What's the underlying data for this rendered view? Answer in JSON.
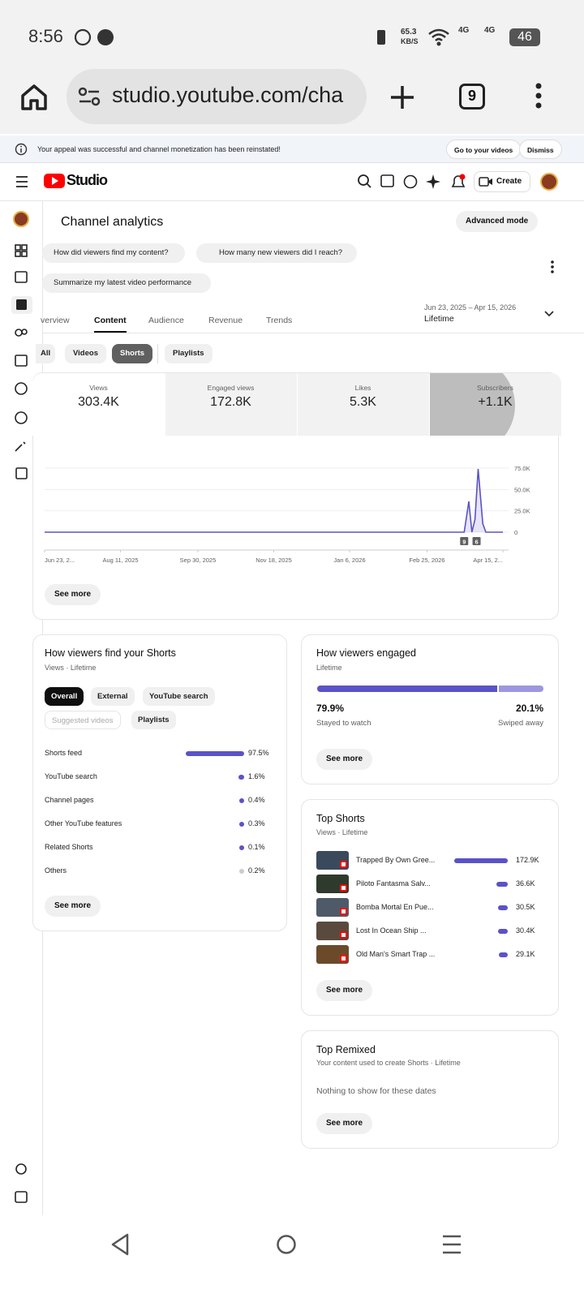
{
  "status_bar": {
    "time": "8:56",
    "speed": "65.3",
    "speed_unit": "KB/S",
    "network_1": "4G",
    "network_2": "4G",
    "battery": "46"
  },
  "browser": {
    "url": "studio.youtube.com/cha",
    "tab_count": "9"
  },
  "banner": {
    "message": "Your appeal was successful and channel monetization has been reinstated!",
    "actions": [
      "Go to your videos",
      "Dismiss"
    ]
  },
  "header": {
    "logo": "Studio",
    "create": "Create"
  },
  "page": {
    "title": "Channel analytics",
    "advanced_mode": "Advanced mode",
    "prompts": [
      "How did viewers find my content?",
      "How many new viewers did I reach?",
      "Summarize my latest video performance"
    ],
    "tabs": [
      "verview",
      "Content",
      "Audience",
      "Revenue",
      "Trends"
    ],
    "active_tab": 1,
    "date_range": "Jun 23, 2025 – Apr 15, 2026",
    "period": "Lifetime",
    "filters": [
      "All",
      "Videos",
      "Shorts",
      "Playlists"
    ],
    "active_filter": 2
  },
  "metrics": [
    {
      "label": "Views",
      "value": "303.4K"
    },
    {
      "label": "Engaged views",
      "value": "172.8K"
    },
    {
      "label": "Likes",
      "value": "5.3K"
    },
    {
      "label": "Subscribers",
      "value": "+1.1K"
    }
  ],
  "views_chart": {
    "type": "line",
    "x": [
      "Jun 23, 2025",
      "Mar 21, 2026",
      "Mar 24, 2026",
      "Mar 26, 2026",
      "Mar 28, 2026",
      "Mar 30, 2026",
      "Apr 2, 2026",
      "Apr 4, 2026",
      "Apr 15, 2026"
    ],
    "series": [
      {
        "color": "#5b52c8",
        "values": [
          0,
          0,
          36000,
          0,
          15000,
          74000,
          10000,
          0,
          0
        ]
      }
    ],
    "xlim": [
      "Jun 23, 2025",
      "Apr 15, 2026"
    ],
    "xticks": [
      {
        "value": "Jun 23, 2025",
        "label": "Jun 23, 2..."
      },
      "Aug 11, 2025",
      "Sep 30, 2025",
      "Nov 18, 2025",
      "Jan 6, 2026",
      "Feb 25, 2026",
      {
        "value": "Apr 15, 2026",
        "label": "Apr 15, 2..."
      }
    ],
    "ylim": [
      0,
      75000
    ],
    "yticks": [
      0,
      {
        "value": 25000,
        "label": "25.0K"
      },
      {
        "value": 50000,
        "label": "50.0K"
      },
      {
        "value": 75000,
        "label": "75.0K"
      }
    ],
    "annotations": [
      {
        "x": "Mar 21, 2026",
        "label": "9"
      },
      {
        "x": "Mar 29, 2026",
        "label": "6"
      }
    ],
    "see_more": "See more"
  },
  "viewer_sources": {
    "title": "How viewers find your Shorts",
    "subtitle": "Views · Lifetime",
    "chips": [
      "Overall",
      "External",
      "YouTube search",
      "Suggested videos",
      "Playlists"
    ],
    "rows": [
      {
        "name": "Shorts feed",
        "value": 97.5,
        "value_label": "97.5%",
        "color": "#5b52c8"
      },
      {
        "name": "YouTube search",
        "value": 1.6,
        "value_label": "1.6%",
        "color": "#5b52c8"
      },
      {
        "name": "Channel pages",
        "value": 0.4,
        "value_label": "0.4%",
        "color": "#5b52c8"
      },
      {
        "name": "Other YouTube features",
        "value": 0.3,
        "value_label": "0.3%",
        "color": "#5b52c8"
      },
      {
        "name": "Related Shorts",
        "value": 0.1,
        "value_label": "0.1%",
        "color": "#5b52c8"
      },
      {
        "name": "Others",
        "value": 0.2,
        "value_label": "0.2%",
        "color": "#cccccc"
      }
    ],
    "see_more": "See more"
  },
  "engagement": {
    "title": "How viewers engaged",
    "period": "Lifetime",
    "stayed": {
      "value": 79.9,
      "value_label": "79.9%",
      "label": "Stayed to watch",
      "color": "#5b52c8"
    },
    "swiped": {
      "value": 20.1,
      "value_label": "20.1%",
      "label": "Swiped away",
      "color": "#9d97e0"
    },
    "see_more": "See more"
  },
  "top_shorts": {
    "title": "Top Shorts",
    "subtitle": "Views · Lifetime",
    "rows": [
      {
        "title": "Trapped By Own Gree...",
        "value": 172900,
        "value_label": "172.9K"
      },
      {
        "title": "Piloto Fantasma Salv...",
        "value": 36600,
        "value_label": "36.6K"
      },
      {
        "title": "Bomba Mortal En Pue...",
        "value": 30500,
        "value_label": "30.5K"
      },
      {
        "title": "Lost In Ocean Ship ...",
        "value": 30400,
        "value_label": "30.4K"
      },
      {
        "title": "Old Man's Smart Trap ...",
        "value": 29100,
        "value_label": "29.1K"
      }
    ],
    "color": "#5b52c8",
    "see_more": "See more"
  },
  "top_remixed": {
    "title": "Top Remixed",
    "subtitle": "Your content used to create Shorts · Lifetime",
    "empty": "Nothing to show for these dates",
    "see_more": "See more"
  }
}
